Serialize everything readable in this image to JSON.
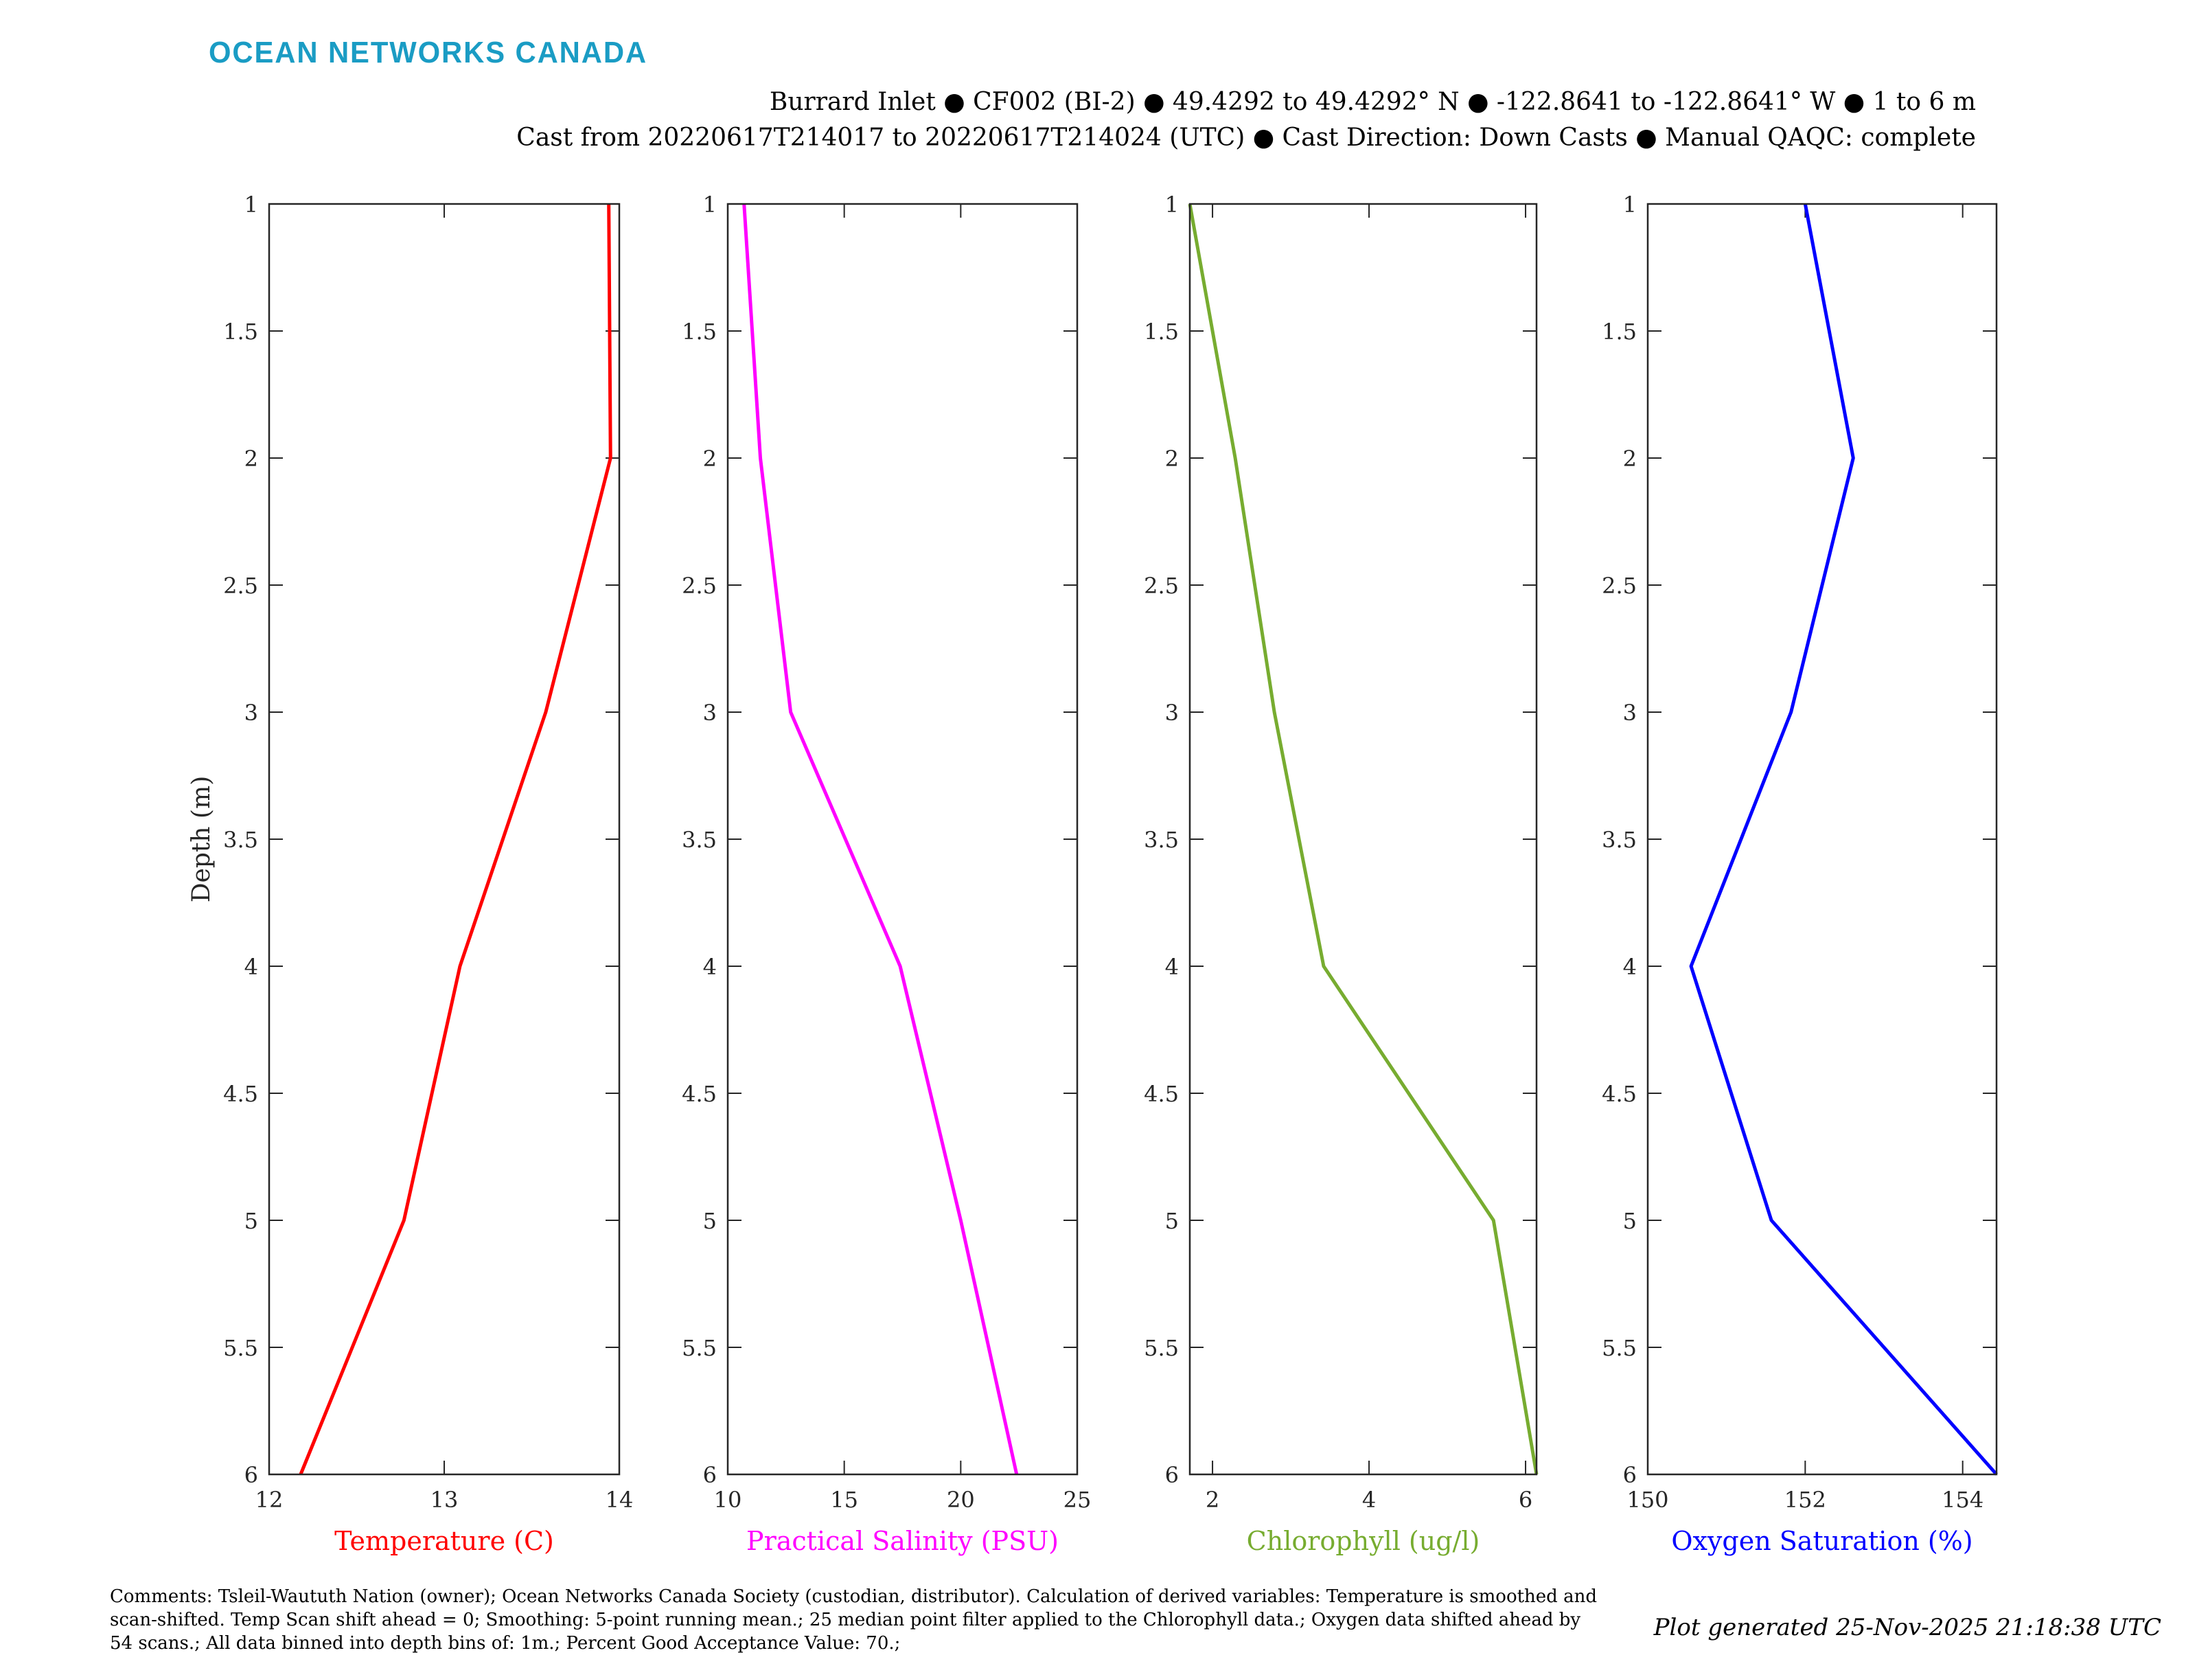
{
  "logo": "OCEAN NETWORKS CANADA",
  "title_line1": "Burrard Inlet ● CF002 (BI-2) ● 49.4292 to 49.4292° N ● -122.8641 to -122.8641° W ● 1 to 6 m",
  "title_line2": "Cast from 20220617T214017 to 20220617T214024 (UTC) ● Cast Direction: Down Casts ● Manual QAQC: complete",
  "comments": "Comments: Tsleil-Waututh Nation (owner); Ocean Networks Canada Society (custodian, distributor). Calculation of derived variables: Temperature is smoothed and scan-shifted. Temp Scan shift ahead = 0; Smoothing: 5-point running mean.; 25 median point filter applied to the Chlorophyll data.; Oxygen data shifted ahead by 54 scans.; All data binned into depth bins of: 1m.; Percent Good Acceptance Value: 70.;",
  "generated": "Plot generated 25-Nov-2025 21:18:38 UTC",
  "chart_data": [
    {
      "type": "line",
      "title": "",
      "xlabel": "Temperature (C)",
      "ylabel": "Depth (m)",
      "color": "#ff0000",
      "xlim": [
        12,
        14
      ],
      "ylim": [
        1,
        6
      ],
      "xticks": [
        12,
        13,
        14
      ],
      "yticks": [
        1,
        1.5,
        2,
        2.5,
        3,
        3.5,
        4,
        4.5,
        5,
        5.5,
        6
      ],
      "depth": [
        1,
        2,
        3,
        4,
        5,
        6
      ],
      "values": [
        13.94,
        13.95,
        13.58,
        13.09,
        12.77,
        12.18
      ]
    },
    {
      "type": "line",
      "title": "",
      "xlabel": "Practical Salinity (PSU)",
      "ylabel": "",
      "color": "#ff00ff",
      "xlim": [
        10,
        25
      ],
      "ylim": [
        1,
        6
      ],
      "xticks": [
        10,
        15,
        20,
        25
      ],
      "yticks": [
        1,
        1.5,
        2,
        2.5,
        3,
        3.5,
        4,
        4.5,
        5,
        5.5,
        6
      ],
      "depth": [
        1,
        2,
        3,
        4,
        5,
        6
      ],
      "values": [
        10.7,
        11.4,
        12.7,
        17.4,
        20.0,
        22.4
      ]
    },
    {
      "type": "line",
      "title": "",
      "xlabel": "Chlorophyll (ug/l)",
      "ylabel": "",
      "color": "#77ac30",
      "xlim": [
        1.71,
        6.14
      ],
      "ylim": [
        1,
        6
      ],
      "xticks": [
        2,
        4,
        6
      ],
      "yticks": [
        1,
        1.5,
        2,
        2.5,
        3,
        3.5,
        4,
        4.5,
        5,
        5.5,
        6
      ],
      "depth": [
        1,
        2,
        3,
        4,
        5,
        6
      ],
      "values": [
        1.71,
        2.29,
        2.79,
        3.42,
        5.59,
        6.14
      ]
    },
    {
      "type": "line",
      "title": "",
      "xlabel": "Oxygen Saturation (%)",
      "ylabel": "",
      "color": "#0000ff",
      "xlim": [
        150,
        154.43
      ],
      "ylim": [
        1,
        6
      ],
      "xticks": [
        150,
        152,
        154
      ],
      "yticks": [
        1,
        1.5,
        2,
        2.5,
        3,
        3.5,
        4,
        4.5,
        5,
        5.5,
        6
      ],
      "depth": [
        1,
        2,
        3,
        4,
        5,
        6
      ],
      "values": [
        152.0,
        152.61,
        151.82,
        150.55,
        151.57,
        154.43
      ]
    }
  ]
}
